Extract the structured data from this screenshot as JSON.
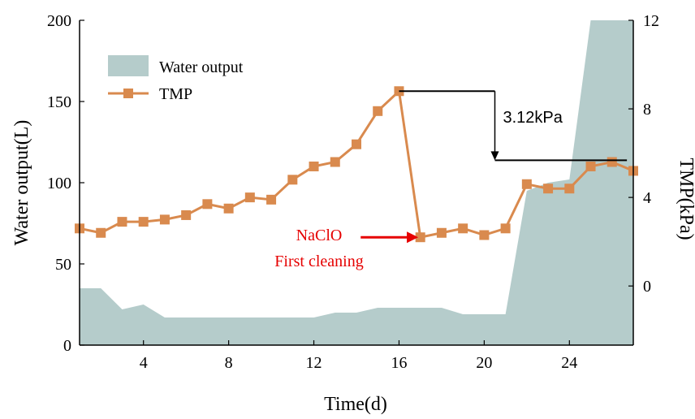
{
  "chart_data": {
    "type": "area+line",
    "xlabel": "Time(d)",
    "ylabel_left": "Water output(L)",
    "ylabel_right": "TMP(kPa)",
    "xlim": [
      1,
      27
    ],
    "ylim_left": [
      0,
      200
    ],
    "ylim_right": [
      -2.67,
      12
    ],
    "x_ticks": [
      4,
      8,
      12,
      16,
      20,
      24
    ],
    "y_ticks_left": [
      0,
      50,
      100,
      150,
      200
    ],
    "y_ticks_right": [
      0,
      4,
      8,
      12
    ],
    "legend_placement": "top-left",
    "series": [
      {
        "name": "Water output",
        "kind": "area",
        "axis": "left",
        "color": "#b5cccb",
        "x": [
          1,
          2,
          3,
          4,
          5,
          6,
          7,
          8,
          9,
          10,
          11,
          12,
          13,
          14,
          15,
          16,
          17,
          18,
          19,
          20,
          21,
          22,
          23,
          24,
          25,
          26,
          27
        ],
        "values": [
          35,
          35,
          22,
          25,
          17,
          17,
          17,
          17,
          17,
          17,
          17,
          17,
          20,
          20,
          23,
          23,
          23,
          23,
          19,
          19,
          19,
          95,
          100,
          102,
          200,
          200,
          200
        ]
      },
      {
        "name": "TMP",
        "kind": "line",
        "axis": "right",
        "color": "#d98a4e",
        "x": [
          1,
          2,
          3,
          4,
          5,
          6,
          7,
          8,
          9,
          10,
          11,
          12,
          13,
          14,
          15,
          16,
          17,
          18,
          19,
          20,
          21,
          22,
          23,
          24,
          25,
          26,
          27
        ],
        "values": [
          2.6,
          2.4,
          2.9,
          2.9,
          3.0,
          3.2,
          3.7,
          3.5,
          4.0,
          3.9,
          4.8,
          5.4,
          5.6,
          6.4,
          7.9,
          8.8,
          2.2,
          2.4,
          2.6,
          2.3,
          2.6,
          4.6,
          4.4,
          4.4,
          5.4,
          5.6,
          5.2
        ]
      }
    ],
    "annotations": {
      "drop_label": "3.12kPa",
      "cleaning_line1": "NaClO",
      "cleaning_line2": "First cleaning",
      "arrow_color": "#e60000",
      "upper_level": 8.8,
      "lower_level": 5.68,
      "upper_line_x": [
        16,
        20.5
      ],
      "lower_line_x": [
        20.5,
        26.7
      ],
      "drop_arrow_x": 20.5,
      "cleaning_arrow_from_x": 14.2,
      "cleaning_arrow_to_x": 16.9,
      "cleaning_arrow_level": 2.2
    }
  }
}
